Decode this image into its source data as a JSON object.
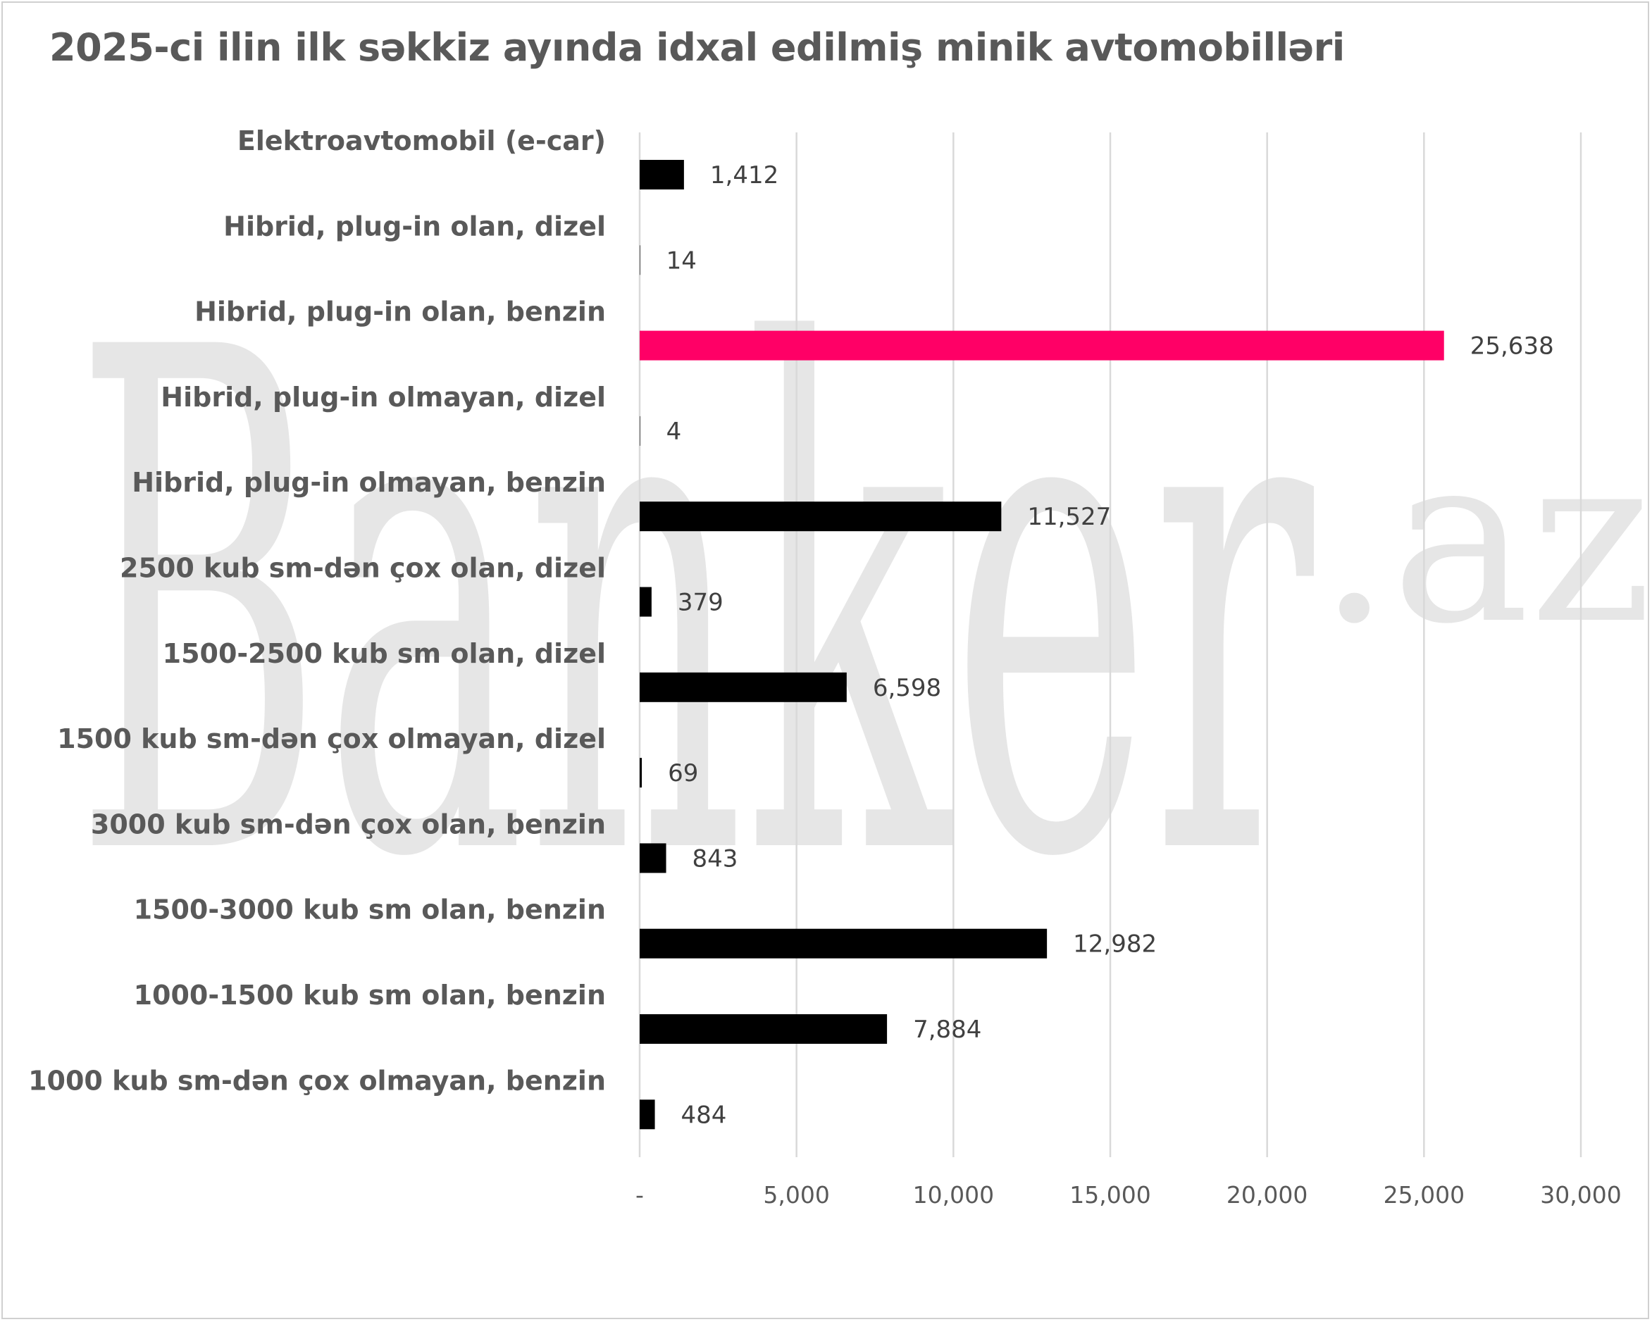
{
  "chart_data": {
    "type": "bar",
    "orientation": "horizontal",
    "title": "2025-ci ilin ilk səkkiz ayında idxal edilmiş minik avtomobilləri",
    "categories": [
      "Elektroavtomobil (e-car)",
      "Hibrid, plug-in olan, dizel",
      "Hibrid, plug-in olan, benzin",
      "Hibrid, plug-in olmayan, dizel",
      "Hibrid, plug-in olmayan, benzin",
      "2500 kub sm-dən çox olan, dizel",
      "1500-2500 kub sm olan, dizel",
      "1500 kub sm-dən çox olmayan, dizel",
      "3000 kub sm-dən çox olan, benzin",
      "1500-3000 kub sm olan, benzin",
      "1000-1500 kub sm olan, benzin",
      "1000 kub sm-dən çox olmayan, benzin"
    ],
    "values": [
      1412,
      14,
      25638,
      4,
      11527,
      379,
      6598,
      69,
      843,
      12982,
      7884,
      484
    ],
    "value_labels": [
      "1,412",
      "14",
      "25,638",
      "4",
      "11,527",
      "379",
      "6,598",
      "69",
      "843",
      "12,982",
      "7,884",
      "484"
    ],
    "highlight_index": 2,
    "colors": {
      "default_bar": "#000000",
      "highlight_bar": "#ff0066",
      "grid": "#d9d9d9"
    },
    "xlim": [
      0,
      30000
    ],
    "x_ticks": [
      0,
      5000,
      10000,
      15000,
      20000,
      25000,
      30000
    ],
    "x_tick_labels": [
      "-",
      "5,000",
      "10,000",
      "15,000",
      "20,000",
      "25,000",
      "30,000"
    ],
    "grid": true,
    "xlabel": "",
    "ylabel": ""
  },
  "watermark": {
    "main": "Banker",
    "suffix": ".az"
  }
}
